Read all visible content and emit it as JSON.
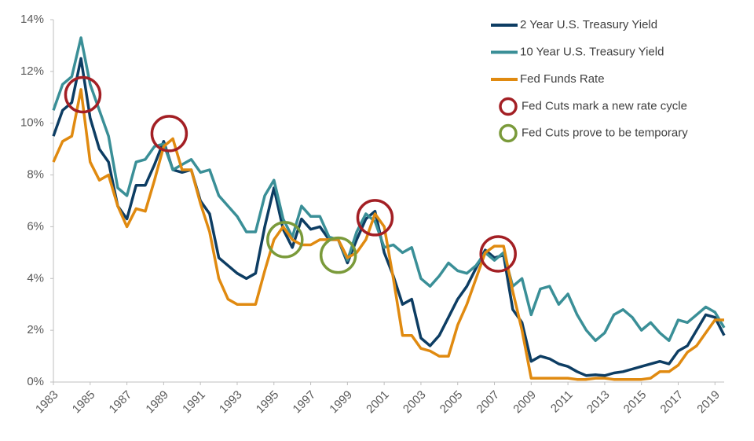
{
  "chart_data": {
    "type": "line",
    "x": [
      1983.0,
      1983.5,
      1984.0,
      1984.5,
      1985.0,
      1985.5,
      1986.0,
      1986.5,
      1987.0,
      1987.5,
      1988.0,
      1988.5,
      1989.0,
      1989.5,
      1990.0,
      1990.5,
      1991.0,
      1991.5,
      1992.0,
      1992.5,
      1993.0,
      1993.5,
      1994.0,
      1994.5,
      1995.0,
      1995.5,
      1996.0,
      1996.5,
      1997.0,
      1997.5,
      1998.0,
      1998.5,
      1999.0,
      1999.5,
      2000.0,
      2000.5,
      2001.0,
      2001.5,
      2002.0,
      2002.5,
      2003.0,
      2003.5,
      2004.0,
      2004.5,
      2005.0,
      2005.5,
      2006.0,
      2006.5,
      2007.0,
      2007.5,
      2008.0,
      2008.5,
      2009.0,
      2009.5,
      2010.0,
      2010.5,
      2011.0,
      2011.5,
      2012.0,
      2012.5,
      2013.0,
      2013.5,
      2014.0,
      2014.5,
      2015.0,
      2015.5,
      2016.0,
      2016.5,
      2017.0,
      2017.5,
      2018.0,
      2018.5,
      2019.0,
      2019.5
    ],
    "series": [
      {
        "name": "2 Year U.S. Treasury Yield",
        "color": "#0d3d63",
        "values": [
          9.5,
          10.5,
          10.8,
          12.5,
          10.2,
          9.0,
          8.5,
          6.8,
          6.3,
          7.6,
          7.6,
          8.4,
          9.3,
          8.2,
          8.1,
          8.2,
          7.0,
          6.5,
          4.8,
          4.5,
          4.2,
          4.0,
          4.2,
          6.0,
          7.5,
          5.9,
          5.2,
          6.3,
          5.9,
          6.0,
          5.5,
          5.5,
          4.6,
          5.5,
          6.3,
          6.6,
          5.0,
          4.1,
          3.0,
          3.2,
          1.7,
          1.4,
          1.8,
          2.5,
          3.2,
          3.7,
          4.4,
          5.1,
          4.8,
          4.9,
          2.8,
          2.3,
          0.8,
          1.0,
          0.9,
          0.7,
          0.6,
          0.4,
          0.25,
          0.28,
          0.25,
          0.35,
          0.4,
          0.5,
          0.6,
          0.7,
          0.8,
          0.7,
          1.2,
          1.4,
          2.0,
          2.6,
          2.5,
          1.8
        ]
      },
      {
        "name": "10 Year U.S. Treasury Yield",
        "color": "#3a8f97",
        "values": [
          10.5,
          11.5,
          11.8,
          13.3,
          11.5,
          10.5,
          9.5,
          7.5,
          7.2,
          8.5,
          8.6,
          9.1,
          9.2,
          8.2,
          8.4,
          8.6,
          8.1,
          8.2,
          7.2,
          6.8,
          6.4,
          5.8,
          5.8,
          7.2,
          7.8,
          6.3,
          5.6,
          6.8,
          6.4,
          6.4,
          5.6,
          5.5,
          4.7,
          5.8,
          6.5,
          6.2,
          5.2,
          5.3,
          5.0,
          5.2,
          4.0,
          3.7,
          4.1,
          4.6,
          4.3,
          4.2,
          4.5,
          5.0,
          4.7,
          5.0,
          3.7,
          4.0,
          2.6,
          3.6,
          3.7,
          3.0,
          3.4,
          2.6,
          2.0,
          1.6,
          1.9,
          2.6,
          2.8,
          2.5,
          2.0,
          2.3,
          1.9,
          1.6,
          2.4,
          2.3,
          2.6,
          2.9,
          2.7,
          2.1
        ]
      },
      {
        "name": "Fed Funds Rate",
        "color": "#e08a10",
        "values": [
          8.5,
          9.3,
          9.5,
          11.3,
          8.5,
          7.8,
          8.0,
          6.8,
          6.0,
          6.7,
          6.6,
          7.8,
          9.1,
          9.4,
          8.2,
          8.2,
          6.9,
          5.8,
          4.0,
          3.2,
          3.0,
          3.0,
          3.0,
          4.3,
          5.5,
          6.0,
          5.5,
          5.3,
          5.3,
          5.5,
          5.5,
          5.5,
          4.8,
          5.0,
          5.5,
          6.5,
          6.0,
          4.0,
          1.8,
          1.8,
          1.3,
          1.2,
          1.0,
          1.0,
          2.2,
          3.0,
          4.0,
          5.0,
          5.25,
          5.25,
          3.5,
          2.0,
          0.15,
          0.15,
          0.15,
          0.15,
          0.15,
          0.1,
          0.1,
          0.15,
          0.15,
          0.1,
          0.1,
          0.1,
          0.1,
          0.15,
          0.4,
          0.4,
          0.65,
          1.15,
          1.4,
          1.9,
          2.4,
          2.4
        ]
      }
    ],
    "markers": [
      {
        "name": "Fed Cuts mark a new rate cycle",
        "color": "#a31f24",
        "x": [
          1984.6,
          1989.3,
          2000.5,
          2007.2
        ],
        "values": [
          11.1,
          9.6,
          6.35,
          4.95
        ]
      },
      {
        "name": "Fed Cuts prove to be temporary",
        "color": "#7a9a3a",
        "x": [
          1995.6,
          1998.5
        ],
        "values": [
          5.5,
          4.9
        ]
      }
    ],
    "xlim": [
      1983,
      2019.5
    ],
    "xticks": [
      1983,
      1985,
      1987,
      1989,
      1991,
      1993,
      1995,
      1997,
      1999,
      2001,
      2003,
      2005,
      2007,
      2009,
      2011,
      2013,
      2015,
      2017,
      2019
    ],
    "ylim": [
      0,
      14
    ],
    "yticks": [
      {
        "value": 0,
        "label": "0%"
      },
      {
        "value": 2,
        "label": "2%"
      },
      {
        "value": 4,
        "label": "4%"
      },
      {
        "value": 6,
        "label": "6%"
      },
      {
        "value": 8,
        "label": "8%"
      },
      {
        "value": 10,
        "label": "10%"
      },
      {
        "value": 12,
        "label": "12%"
      },
      {
        "value": 14,
        "label": "14%"
      }
    ],
    "legend": "top-right"
  }
}
